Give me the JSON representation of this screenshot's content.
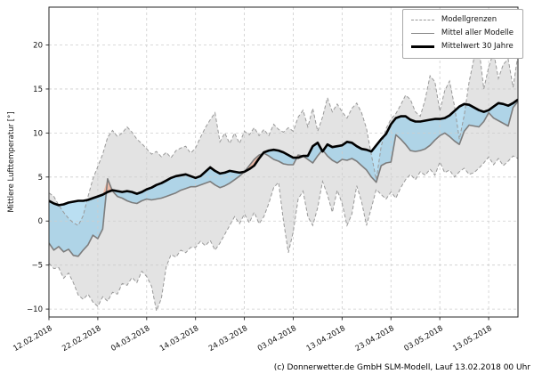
{
  "page": {
    "footer_credit": "(c) Donnerwetter.de GmbH SLM-Modell, Lauf 13.02.2018 00 Uhr"
  },
  "chart_data": {
    "type": "line",
    "title": "",
    "xlabel": "",
    "ylabel": "Mittlere Lufttemperatur [°]",
    "grid": true,
    "legend": {
      "position": "upper right",
      "entries": [
        {
          "label": "Modellgrenzen",
          "style": "dashed-gray"
        },
        {
          "label": "Mittel aller Modelle",
          "style": "solid-gray"
        },
        {
          "label": "Mittelwert 30 Jahre",
          "style": "solid-black-thick"
        }
      ]
    },
    "x_ticks": [
      {
        "day": 0,
        "label": "12.02.2018"
      },
      {
        "day": 10,
        "label": "22.02.2018"
      },
      {
        "day": 20,
        "label": "04.03.2018"
      },
      {
        "day": 30,
        "label": "14.03.2018"
      },
      {
        "day": 40,
        "label": "24.03.2018"
      },
      {
        "day": 50,
        "label": "03.04.2018"
      },
      {
        "day": 60,
        "label": "13.04.2018"
      },
      {
        "day": 70,
        "label": "23.04.2018"
      },
      {
        "day": 80,
        "label": "03.05.2018"
      },
      {
        "day": 90,
        "label": "13.05.2018"
      }
    ],
    "y_ticks": [
      -10,
      -5,
      0,
      5,
      10,
      15,
      20
    ],
    "xlim_days": [
      0,
      96
    ],
    "ylim": [
      -10.9,
      24.3
    ],
    "colors": {
      "band_fill": "#e3e3e3",
      "band_edge": "#999999",
      "below_fill": "#8fcbea",
      "below_opacity": 0.62,
      "above_fill": "#f0a88e",
      "above_opacity": 0.72,
      "mean_line": "#7d7d7d",
      "climate_line": "#000000",
      "grid_line": "#cdcdcd",
      "axis": "#262626"
    },
    "series": [
      {
        "name": "Modellgrenzen (Maximum)",
        "role": "max",
        "values": [
          3.2,
          2.8,
          1.8,
          1.0,
          0.3,
          -0.2,
          -0.5,
          0.6,
          2.8,
          4.8,
          6.2,
          7.6,
          9.5,
          10.3,
          9.6,
          10.0,
          10.7,
          10.1,
          9.3,
          8.8,
          8.2,
          7.6,
          7.9,
          7.3,
          7.8,
          7.2,
          8.0,
          8.3,
          8.5,
          7.7,
          8.3,
          9.5,
          10.6,
          11.5,
          12.3,
          9.0,
          10.0,
          8.8,
          10.0,
          8.8,
          10.2,
          9.8,
          10.6,
          9.7,
          10.4,
          9.7,
          11.0,
          10.4,
          10.1,
          10.6,
          10.2,
          11.8,
          12.6,
          10.7,
          12.8,
          10.2,
          11.8,
          14.0,
          12.4,
          13.3,
          12.4,
          11.7,
          12.8,
          13.4,
          12.3,
          10.5,
          7.5,
          4.7,
          8.5,
          10.5,
          11.6,
          12.2,
          13.2,
          14.3,
          13.8,
          12.4,
          11.9,
          13.8,
          16.5,
          15.8,
          12.5,
          14.8,
          15.9,
          13.1,
          9.3,
          12.0,
          15.8,
          18.5,
          19.7,
          15.0,
          17.5,
          19.2,
          16.2,
          17.8,
          18.4,
          15.2,
          18.9
        ]
      },
      {
        "name": "Modellgrenzen (Minimum)",
        "role": "min",
        "values": [
          -4.8,
          -5.4,
          -5.3,
          -6.5,
          -5.9,
          -7.0,
          -8.4,
          -8.9,
          -8.3,
          -9.2,
          -9.7,
          -8.6,
          -9.1,
          -8.1,
          -8.3,
          -7.1,
          -7.3,
          -6.4,
          -7.0,
          -5.7,
          -6.3,
          -7.4,
          -10.2,
          -8.8,
          -5.2,
          -3.8,
          -4.1,
          -3.3,
          -3.6,
          -3.0,
          -3.0,
          -2.3,
          -2.8,
          -2.2,
          -3.3,
          -2.5,
          -1.5,
          -0.5,
          0.5,
          -0.3,
          0.8,
          -0.2,
          1.0,
          -0.3,
          0.5,
          2.0,
          3.8,
          4.4,
          0.0,
          -3.6,
          -1.2,
          2.5,
          3.4,
          0.5,
          -0.5,
          1.5,
          4.5,
          3.0,
          1.0,
          3.5,
          2.0,
          -0.5,
          0.8,
          4.0,
          2.2,
          -0.5,
          1.5,
          3.6,
          3.0,
          2.5,
          3.3,
          2.6,
          3.8,
          4.7,
          5.3,
          4.7,
          5.6,
          5.2,
          5.9,
          5.2,
          6.7,
          5.5,
          5.8,
          5.0,
          5.6,
          6.0,
          5.3,
          5.5,
          6.0,
          6.6,
          7.3,
          6.4,
          7.1,
          6.3,
          6.8,
          7.4,
          7.1
        ]
      },
      {
        "name": "Mittel aller Modelle",
        "role": "mean",
        "values": [
          -2.5,
          -3.3,
          -2.9,
          -3.5,
          -3.2,
          -3.9,
          -4.0,
          -3.3,
          -2.7,
          -1.6,
          -2.0,
          -0.9,
          4.8,
          3.4,
          2.8,
          2.6,
          2.3,
          2.1,
          2.0,
          2.3,
          2.5,
          2.4,
          2.5,
          2.6,
          2.8,
          3.0,
          3.2,
          3.5,
          3.7,
          3.9,
          3.9,
          4.1,
          4.3,
          4.5,
          4.1,
          3.8,
          4.0,
          4.3,
          4.7,
          5.1,
          5.6,
          6.3,
          7.0,
          7.5,
          7.7,
          7.4,
          7.0,
          6.8,
          6.5,
          6.4,
          6.4,
          7.5,
          7.4,
          7.0,
          6.6,
          7.4,
          8.1,
          7.4,
          6.9,
          6.6,
          7.0,
          6.9,
          7.1,
          6.8,
          6.3,
          5.8,
          5.0,
          4.4,
          6.3,
          6.6,
          6.7,
          9.8,
          9.3,
          8.7,
          8.0,
          7.9,
          8.0,
          8.2,
          8.6,
          9.2,
          9.7,
          10.0,
          9.6,
          9.1,
          8.7,
          10.2,
          10.9,
          10.8,
          10.7,
          11.3,
          12.3,
          11.7,
          11.4,
          11.1,
          10.8,
          12.9,
          13.6
        ]
      },
      {
        "name": "Mittelwert 30 Jahre",
        "role": "climate",
        "values": [
          2.3,
          2.0,
          1.8,
          1.9,
          2.1,
          2.2,
          2.3,
          2.3,
          2.4,
          2.6,
          2.8,
          3.0,
          3.3,
          3.5,
          3.4,
          3.3,
          3.4,
          3.3,
          3.1,
          3.3,
          3.6,
          3.8,
          4.1,
          4.3,
          4.6,
          4.9,
          5.1,
          5.2,
          5.3,
          5.1,
          4.9,
          5.1,
          5.6,
          6.1,
          5.7,
          5.4,
          5.5,
          5.7,
          5.6,
          5.5,
          5.6,
          5.9,
          6.3,
          7.1,
          7.8,
          8.0,
          8.1,
          8.0,
          7.8,
          7.5,
          7.2,
          7.2,
          7.4,
          7.4,
          8.5,
          8.9,
          7.9,
          8.7,
          8.4,
          8.5,
          8.6,
          9.0,
          8.9,
          8.5,
          8.2,
          8.1,
          7.9,
          8.6,
          9.3,
          9.9,
          11.0,
          11.7,
          11.9,
          11.9,
          11.5,
          11.3,
          11.3,
          11.4,
          11.5,
          11.6,
          11.6,
          11.7,
          12.0,
          12.5,
          13.0,
          13.3,
          13.2,
          12.9,
          12.6,
          12.4,
          12.6,
          13.0,
          13.4,
          13.3,
          13.1,
          13.4,
          13.8
        ]
      }
    ]
  }
}
